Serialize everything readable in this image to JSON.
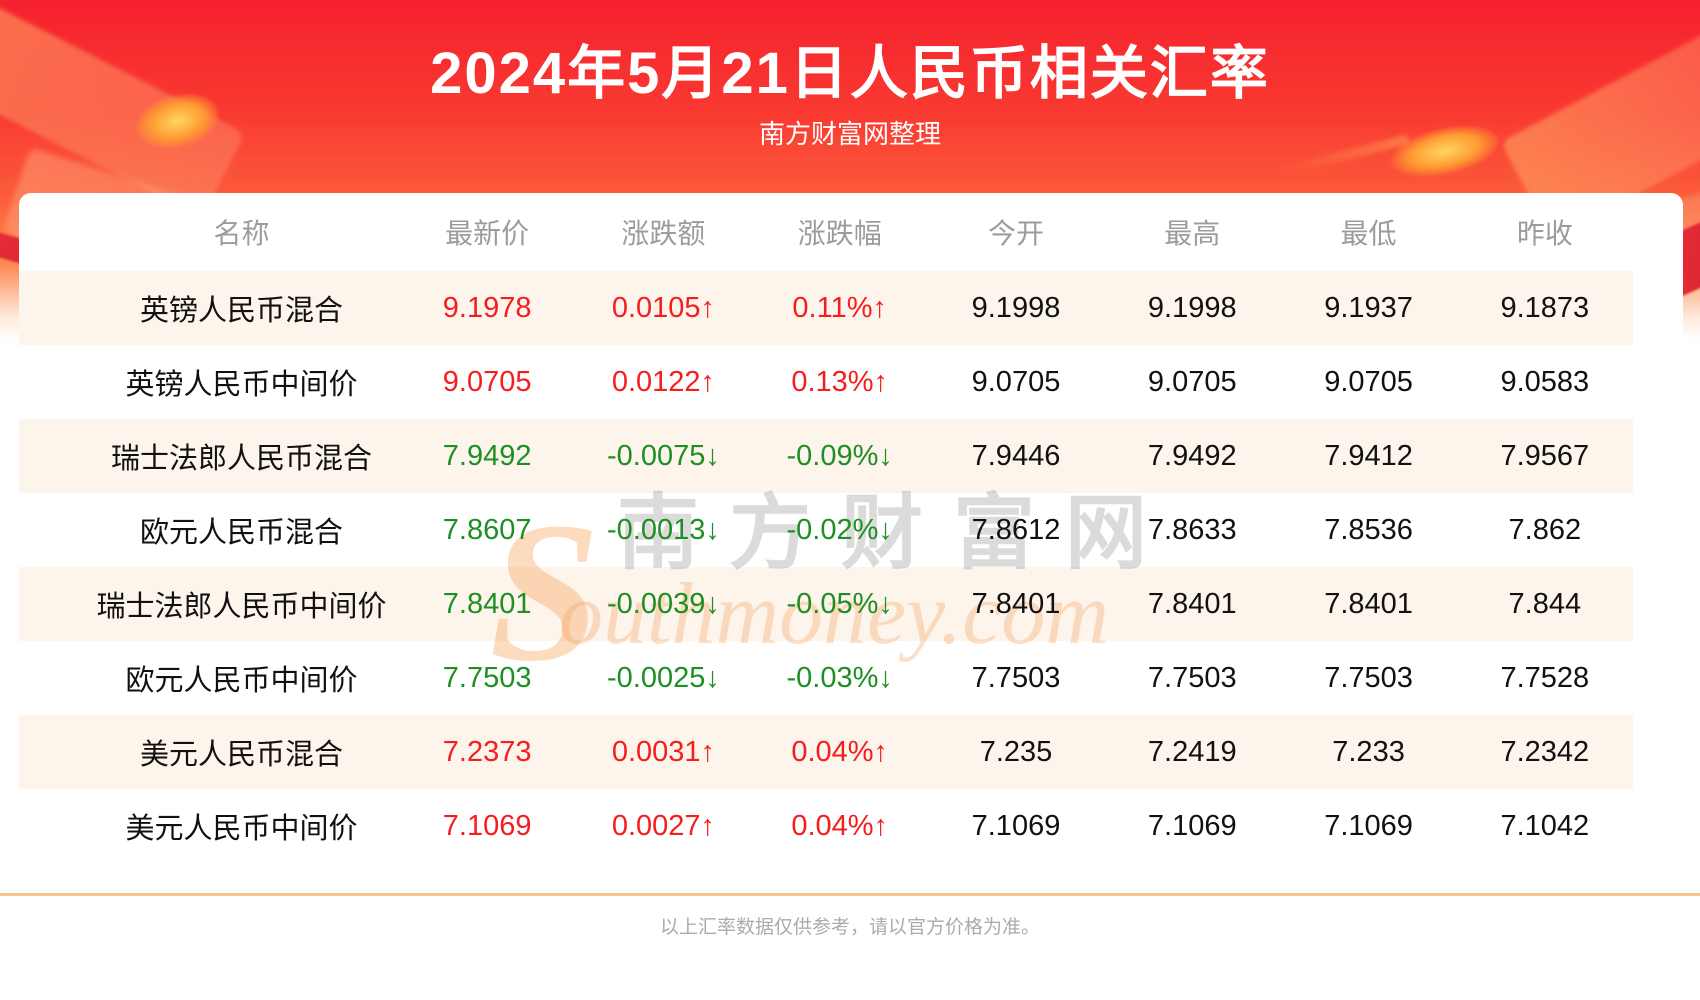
{
  "colors": {
    "up-red": "#f41e1e",
    "down-green": "#1e8f23",
    "row-alt-bg": "#fdf4ec",
    "divider-orange": "#f5c78b",
    "header-text-gray": "#9c9c9c"
  },
  "header": {
    "title": "2024年5月21日人民币相关汇率",
    "subtitle": "南方财富网整理"
  },
  "watermark": {
    "initial": "S",
    "cn": "南方财富网",
    "en": "outhmoney.com"
  },
  "chart_data": {
    "type": "table",
    "title": "2024年5月21日人民币相关汇率",
    "subtitle": "南方财富网整理",
    "columns": [
      "名称",
      "最新价",
      "涨跌额",
      "涨跌幅",
      "今开",
      "最高",
      "最低",
      "昨收"
    ],
    "rows": [
      {
        "cells": [
          "英镑人民币混合",
          "9.1978",
          "0.0105↑",
          "0.11%↑",
          "9.1998",
          "9.1998",
          "9.1937",
          "9.1873"
        ],
        "trend": "up"
      },
      {
        "cells": [
          "英镑人民币中间价",
          "9.0705",
          "0.0122↑",
          "0.13%↑",
          "9.0705",
          "9.0705",
          "9.0705",
          "9.0583"
        ],
        "trend": "up"
      },
      {
        "cells": [
          "瑞士法郎人民币混合",
          "7.9492",
          "-0.0075↓",
          "-0.09%↓",
          "7.9446",
          "7.9492",
          "7.9412",
          "7.9567"
        ],
        "trend": "down"
      },
      {
        "cells": [
          "欧元人民币混合",
          "7.8607",
          "-0.0013↓",
          "-0.02%↓",
          "7.8612",
          "7.8633",
          "7.8536",
          "7.862"
        ],
        "trend": "down"
      },
      {
        "cells": [
          "瑞士法郎人民币中间价",
          "7.8401",
          "-0.0039↓",
          "-0.05%↓",
          "7.8401",
          "7.8401",
          "7.8401",
          "7.844"
        ],
        "trend": "down"
      },
      {
        "cells": [
          "欧元人民币中间价",
          "7.7503",
          "-0.0025↓",
          "-0.03%↓",
          "7.7503",
          "7.7503",
          "7.7503",
          "7.7528"
        ],
        "trend": "down"
      },
      {
        "cells": [
          "美元人民币混合",
          "7.2373",
          "0.0031↑",
          "0.04%↑",
          "7.235",
          "7.2419",
          "7.233",
          "7.2342"
        ],
        "trend": "up"
      },
      {
        "cells": [
          "美元人民币中间价",
          "7.1069",
          "0.0027↑",
          "0.04%↑",
          "7.1069",
          "7.1069",
          "7.1069",
          "7.1042"
        ],
        "trend": "up"
      }
    ]
  },
  "footer": {
    "disclaimer": "以上汇率数据仅供参考，请以官方价格为准。"
  }
}
